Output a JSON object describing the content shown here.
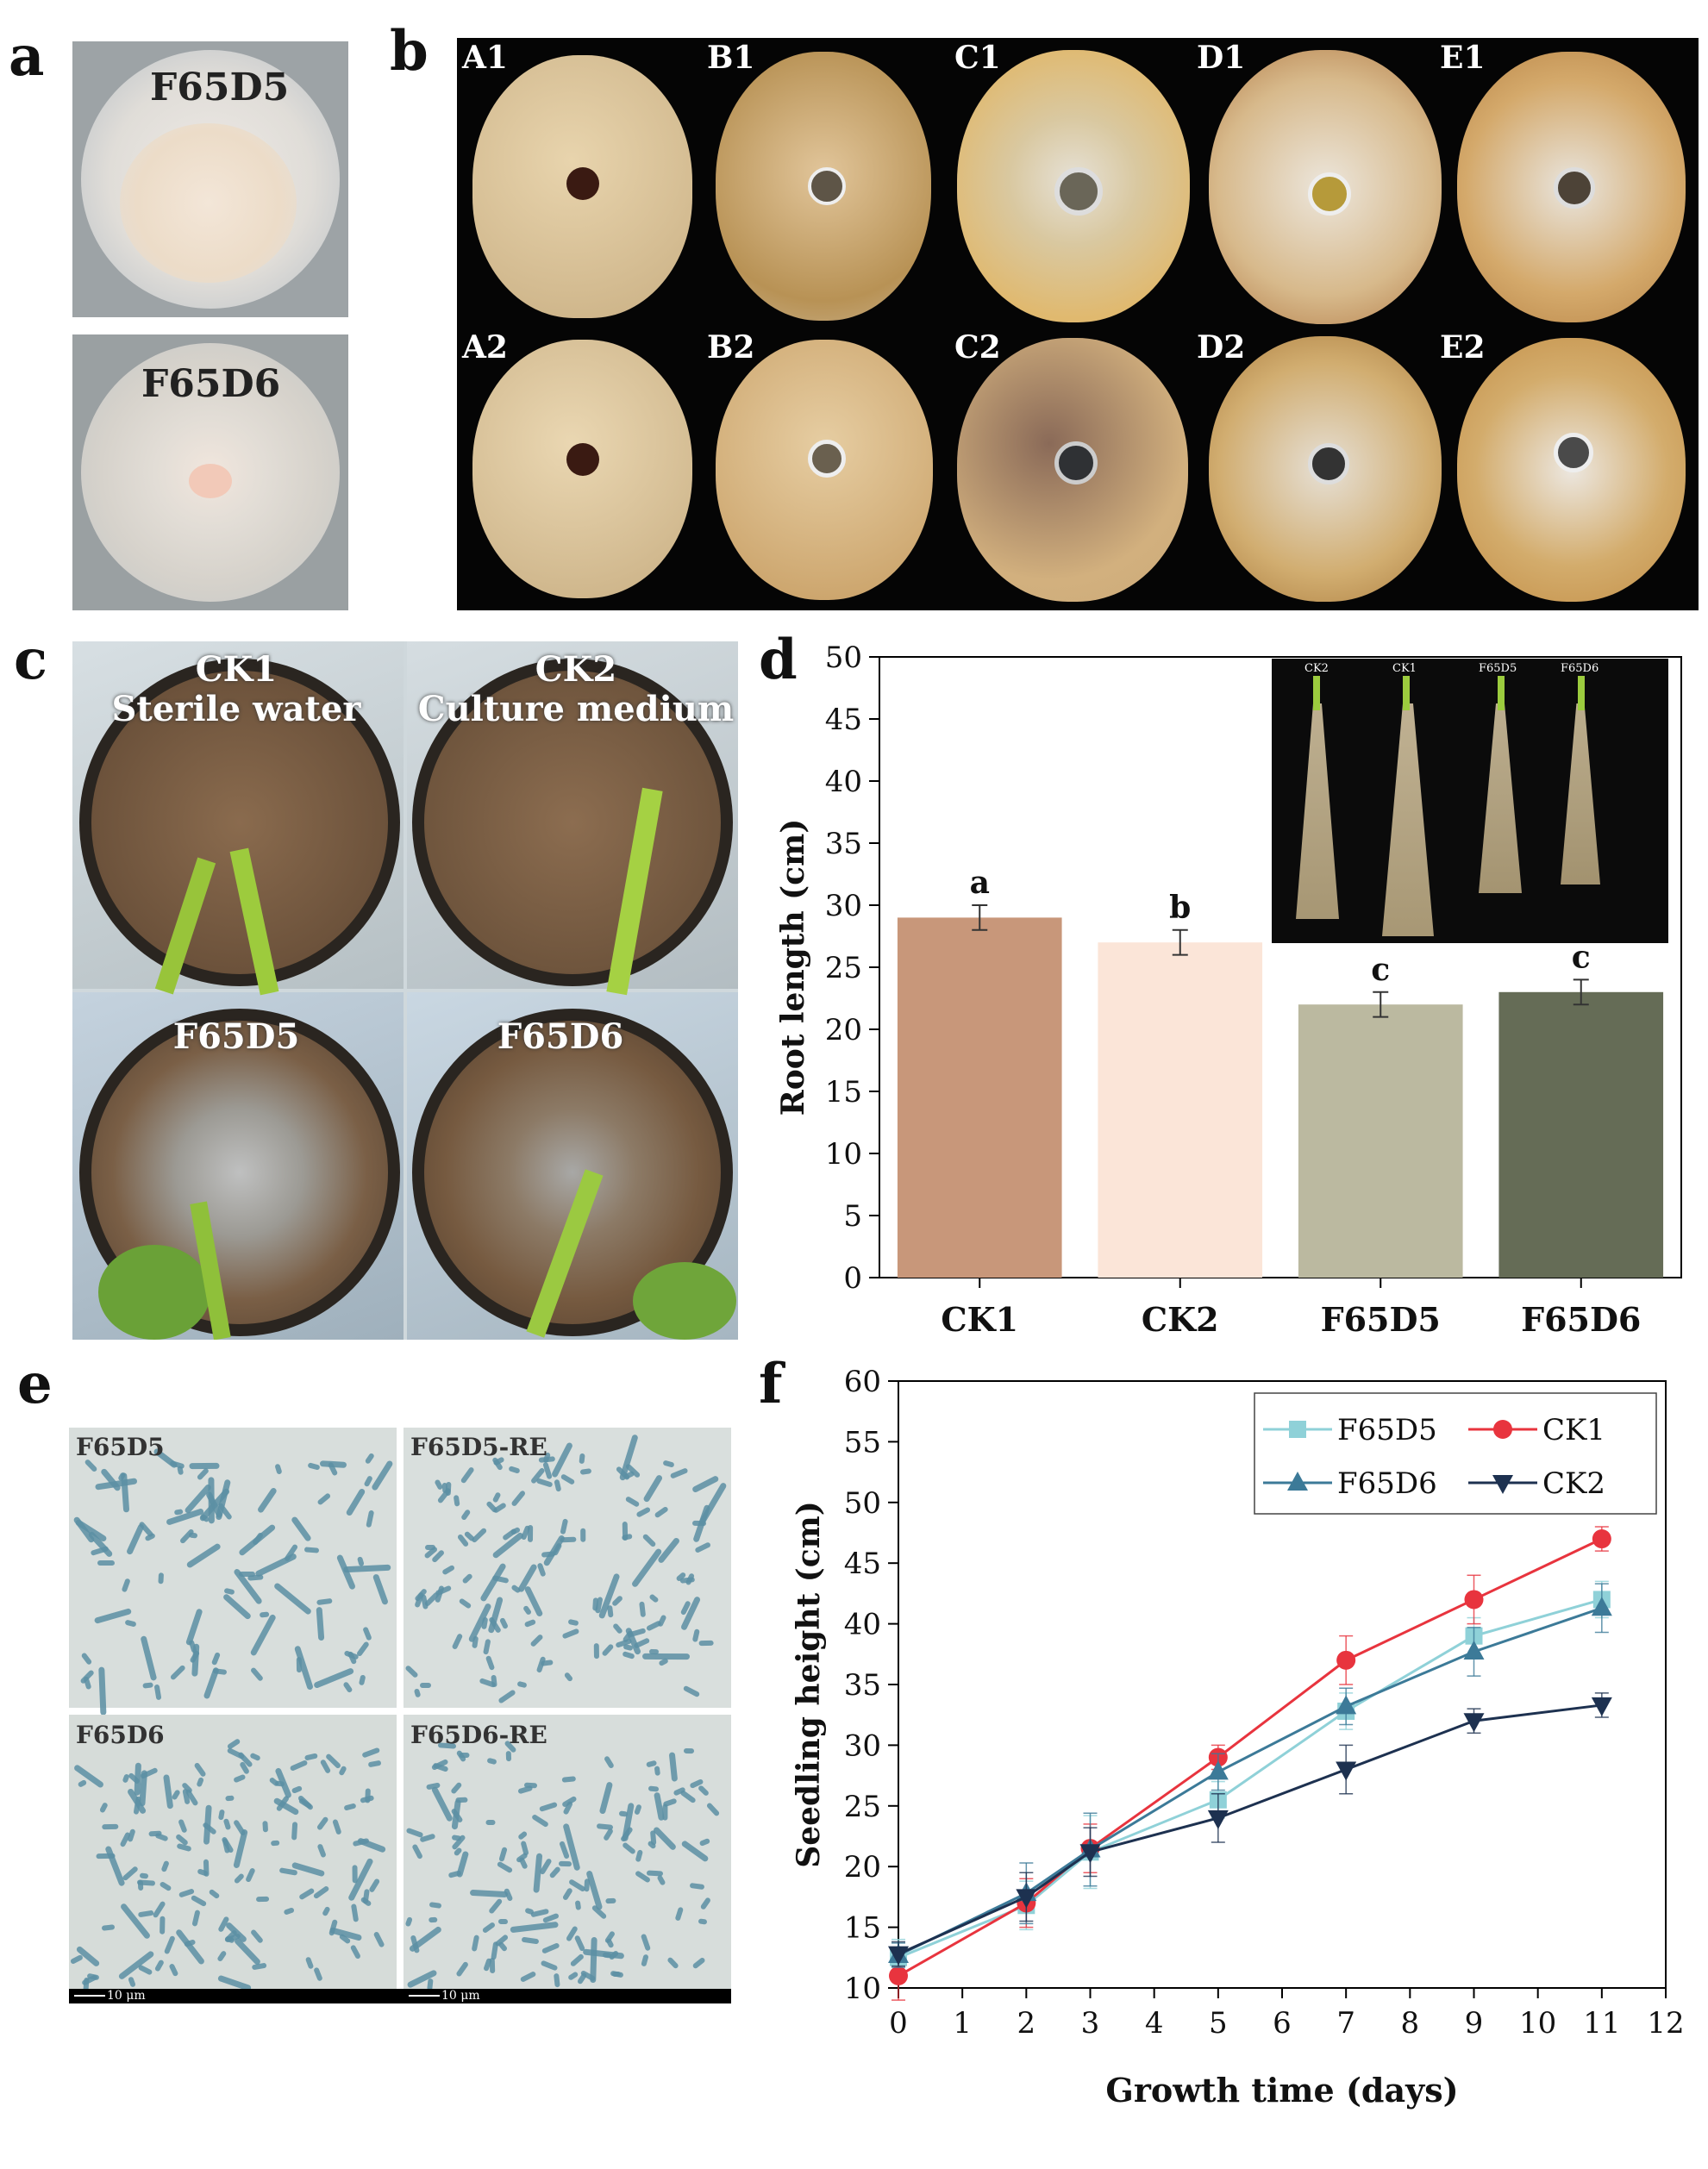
{
  "panels": {
    "a": {
      "letter": "a",
      "dishes": [
        {
          "label": "F65D5"
        },
        {
          "label": "F65D6"
        }
      ]
    },
    "b": {
      "letter": "b",
      "tubers_top": [
        "A1",
        "B1",
        "C1",
        "D1",
        "E1"
      ],
      "tubers_bottom": [
        "A2",
        "B2",
        "C2",
        "D2",
        "E2"
      ]
    },
    "c": {
      "letter": "c",
      "pots": [
        {
          "label": "CK1\nSterile water"
        },
        {
          "label": "CK2\nCulture medium"
        },
        {
          "label": "F65D5"
        },
        {
          "label": "F65D6"
        }
      ]
    },
    "d": {
      "letter": "d",
      "inset_labels": [
        "CK2",
        "CK1",
        "F65D5",
        "F65D6"
      ]
    },
    "e": {
      "letter": "e",
      "fields": [
        {
          "label": "F65D5",
          "scale": ""
        },
        {
          "label": "F65D5-RE",
          "scale": ""
        },
        {
          "label": "F65D6",
          "scale": "10 μm"
        },
        {
          "label": "F65D6-RE",
          "scale": "10 μm"
        }
      ]
    },
    "f": {
      "letter": "f"
    }
  },
  "colors": {
    "bar_ck1": "#c8977a",
    "bar_ck2": "#fbe5d8",
    "bar_f65d5": "#bbb9a0",
    "bar_f65d6": "#656c56",
    "line_f65d5": "#8fd1d8",
    "line_ck1": "#e8343e",
    "line_f65d6": "#3c7a98",
    "line_ck2": "#1d3150"
  },
  "chart_data": [
    {
      "id": "d",
      "type": "bar",
      "categories": [
        "CK1",
        "CK2",
        "F65D5",
        "F65D6"
      ],
      "values": [
        29,
        27,
        22,
        23
      ],
      "errors": [
        1.0,
        1.0,
        1.0,
        1.0
      ],
      "significance": [
        "a",
        "b",
        "c",
        "c"
      ],
      "ylabel": "Root length (cm)",
      "xlabel": "",
      "ylim": [
        0,
        50
      ],
      "yticks": [
        0,
        5,
        10,
        15,
        20,
        25,
        30,
        35,
        40,
        45,
        50
      ]
    },
    {
      "id": "f",
      "type": "line",
      "xlabel": "Growth time (days)",
      "ylabel": "Seedling height (cm)",
      "xlim": [
        0,
        12
      ],
      "ylim": [
        10,
        60
      ],
      "xticks": [
        0,
        1,
        2,
        3,
        4,
        5,
        6,
        7,
        8,
        9,
        10,
        11,
        12
      ],
      "yticks": [
        10,
        15,
        20,
        25,
        30,
        35,
        40,
        45,
        50,
        55,
        60
      ],
      "x": [
        0,
        2,
        3,
        5,
        7,
        9,
        11
      ],
      "legend_position": "top-right",
      "series": [
        {
          "name": "F65D5",
          "marker": "square",
          "values": [
            12.5,
            16.8,
            21.2,
            25.5,
            32.8,
            39.0,
            42.0
          ],
          "errors": [
            1.5,
            2.0,
            3.0,
            1.5,
            1.5,
            1.5,
            1.5
          ]
        },
        {
          "name": "CK1",
          "marker": "circle",
          "values": [
            11.0,
            17.0,
            21.5,
            29.0,
            37.0,
            42.0,
            47.0
          ],
          "errors": [
            2.0,
            2.0,
            2.0,
            1.0,
            2.0,
            2.0,
            1.0
          ]
        },
        {
          "name": "F65D6",
          "marker": "triangle-up",
          "values": [
            12.7,
            17.8,
            21.4,
            27.8,
            33.2,
            37.7,
            41.3
          ],
          "errors": [
            1.0,
            2.5,
            3.0,
            1.5,
            1.5,
            2.0,
            2.0
          ]
        },
        {
          "name": "CK2",
          "marker": "triangle-down",
          "values": [
            12.8,
            17.5,
            21.2,
            24.0,
            28.0,
            32.0,
            33.3
          ],
          "errors": [
            1.0,
            2.0,
            2.0,
            2.0,
            2.0,
            1.0,
            1.0
          ]
        }
      ]
    }
  ]
}
